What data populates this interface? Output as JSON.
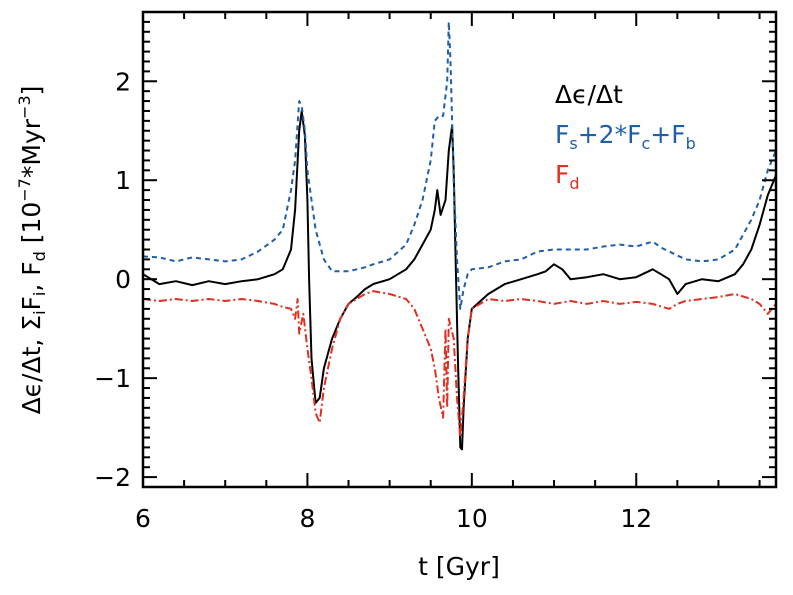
{
  "chart_data": {
    "type": "line",
    "xlabel": "t [Gyr]",
    "ylabel": "Δϵ/Δt,  Σ_i F_i,  F_d  [10^-7*Myr^-3]",
    "ylabel_parts": {
      "prefix": "Δϵ/Δt,  Σ",
      "sum_sub": "i",
      "mid": "F",
      "mid_sub": "i",
      "sep": ",  F",
      "fd_sub": "d",
      "unit_open": "  [10",
      "unit_exp": "−7",
      "unit_mid": "*Myr",
      "unit_exp2": "−3",
      "unit_close": "]"
    },
    "xlim": [
      6,
      13.7
    ],
    "ylim": [
      -2.1,
      2.7
    ],
    "x_ticks": [
      6,
      8,
      10,
      12
    ],
    "y_ticks": [
      -2,
      -1,
      0,
      1,
      2
    ],
    "legend": {
      "placement": "top-right",
      "entries": [
        {
          "name": "Δϵ/Δt",
          "color": "#000000",
          "parts": [
            {
              "t": "Δϵ/Δt",
              "sub": false
            }
          ]
        },
        {
          "name": "F_s+2*F_c+F_b",
          "color": "#1f5fa8",
          "parts": [
            {
              "t": "F",
              "sub": false
            },
            {
              "t": "s",
              "sub": true
            },
            {
              "t": "+2*F",
              "sub": false
            },
            {
              "t": "c",
              "sub": true
            },
            {
              "t": "+F",
              "sub": false
            },
            {
              "t": "b",
              "sub": true
            }
          ]
        },
        {
          "name": "F_d",
          "color": "#e03020",
          "parts": [
            {
              "t": "F",
              "sub": false
            },
            {
              "t": "d",
              "sub": true
            }
          ]
        }
      ]
    },
    "series": [
      {
        "name": "Δϵ/Δt",
        "color": "#000000",
        "dash": "solid",
        "points": [
          [
            6.0,
            0.05
          ],
          [
            6.2,
            -0.05
          ],
          [
            6.4,
            -0.02
          ],
          [
            6.6,
            -0.06
          ],
          [
            6.8,
            -0.02
          ],
          [
            7.0,
            -0.05
          ],
          [
            7.2,
            -0.02
          ],
          [
            7.4,
            0.0
          ],
          [
            7.6,
            0.05
          ],
          [
            7.7,
            0.1
          ],
          [
            7.8,
            0.3
          ],
          [
            7.85,
            0.7
          ],
          [
            7.9,
            1.5
          ],
          [
            7.93,
            1.7
          ],
          [
            7.97,
            1.45
          ],
          [
            8.0,
            0.8
          ],
          [
            8.02,
            0.0
          ],
          [
            8.05,
            -0.8
          ],
          [
            8.1,
            -1.25
          ],
          [
            8.15,
            -1.2
          ],
          [
            8.2,
            -0.9
          ],
          [
            8.3,
            -0.6
          ],
          [
            8.4,
            -0.4
          ],
          [
            8.5,
            -0.25
          ],
          [
            8.6,
            -0.18
          ],
          [
            8.7,
            -0.1
          ],
          [
            8.8,
            -0.05
          ],
          [
            9.0,
            0.0
          ],
          [
            9.2,
            0.1
          ],
          [
            9.3,
            0.2
          ],
          [
            9.4,
            0.35
          ],
          [
            9.5,
            0.5
          ],
          [
            9.55,
            0.7
          ],
          [
            9.58,
            0.9
          ],
          [
            9.62,
            0.65
          ],
          [
            9.68,
            0.8
          ],
          [
            9.72,
            1.3
          ],
          [
            9.76,
            1.55
          ],
          [
            9.78,
            1.1
          ],
          [
            9.8,
            0.3
          ],
          [
            9.83,
            -0.8
          ],
          [
            9.86,
            -1.7
          ],
          [
            9.88,
            -1.72
          ],
          [
            9.9,
            -1.3
          ],
          [
            9.95,
            -0.6
          ],
          [
            10.0,
            -0.3
          ],
          [
            10.2,
            -0.15
          ],
          [
            10.4,
            -0.05
          ],
          [
            10.6,
            0.0
          ],
          [
            10.8,
            0.05
          ],
          [
            10.9,
            0.08
          ],
          [
            11.0,
            0.15
          ],
          [
            11.1,
            0.1
          ],
          [
            11.2,
            0.0
          ],
          [
            11.4,
            0.02
          ],
          [
            11.6,
            0.05
          ],
          [
            11.8,
            0.0
          ],
          [
            12.0,
            0.02
          ],
          [
            12.2,
            0.1
          ],
          [
            12.3,
            0.05
          ],
          [
            12.4,
            0.0
          ],
          [
            12.5,
            -0.15
          ],
          [
            12.6,
            -0.05
          ],
          [
            12.8,
            0.0
          ],
          [
            13.0,
            -0.02
          ],
          [
            13.2,
            0.05
          ],
          [
            13.3,
            0.15
          ],
          [
            13.4,
            0.3
          ],
          [
            13.5,
            0.55
          ],
          [
            13.6,
            0.85
          ],
          [
            13.7,
            1.05
          ]
        ]
      },
      {
        "name": "F_s+2*F_c+F_b",
        "color": "#1f5fa8",
        "dash": "dashed",
        "points": [
          [
            6.0,
            0.23
          ],
          [
            6.2,
            0.22
          ],
          [
            6.4,
            0.18
          ],
          [
            6.6,
            0.22
          ],
          [
            6.8,
            0.2
          ],
          [
            7.0,
            0.18
          ],
          [
            7.2,
            0.2
          ],
          [
            7.4,
            0.28
          ],
          [
            7.6,
            0.4
          ],
          [
            7.7,
            0.5
          ],
          [
            7.8,
            0.9
          ],
          [
            7.85,
            1.2
          ],
          [
            7.9,
            1.8
          ],
          [
            7.93,
            1.75
          ],
          [
            7.97,
            1.5
          ],
          [
            8.0,
            1.1
          ],
          [
            8.05,
            0.8
          ],
          [
            8.1,
            0.5
          ],
          [
            8.2,
            0.2
          ],
          [
            8.3,
            0.08
          ],
          [
            8.5,
            0.08
          ],
          [
            8.7,
            0.12
          ],
          [
            8.8,
            0.15
          ],
          [
            9.0,
            0.2
          ],
          [
            9.2,
            0.35
          ],
          [
            9.3,
            0.55
          ],
          [
            9.4,
            0.8
          ],
          [
            9.5,
            1.2
          ],
          [
            9.55,
            1.6
          ],
          [
            9.6,
            1.65
          ],
          [
            9.65,
            1.65
          ],
          [
            9.7,
            2.0
          ],
          [
            9.72,
            2.6
          ],
          [
            9.74,
            2.2
          ],
          [
            9.78,
            1.0
          ],
          [
            9.82,
            0.2
          ],
          [
            9.86,
            -0.3
          ],
          [
            9.9,
            -0.1
          ],
          [
            9.95,
            0.05
          ],
          [
            10.0,
            0.1
          ],
          [
            10.2,
            0.12
          ],
          [
            10.4,
            0.18
          ],
          [
            10.6,
            0.2
          ],
          [
            10.8,
            0.28
          ],
          [
            11.0,
            0.3
          ],
          [
            11.2,
            0.3
          ],
          [
            11.4,
            0.3
          ],
          [
            11.6,
            0.33
          ],
          [
            11.8,
            0.35
          ],
          [
            12.0,
            0.33
          ],
          [
            12.2,
            0.38
          ],
          [
            12.3,
            0.32
          ],
          [
            12.4,
            0.28
          ],
          [
            12.6,
            0.2
          ],
          [
            12.8,
            0.18
          ],
          [
            13.0,
            0.2
          ],
          [
            13.2,
            0.3
          ],
          [
            13.3,
            0.45
          ],
          [
            13.4,
            0.6
          ],
          [
            13.5,
            0.8
          ],
          [
            13.6,
            1.1
          ],
          [
            13.7,
            1.3
          ]
        ]
      },
      {
        "name": "F_d",
        "color": "#e03020",
        "dash": "dashdot",
        "points": [
          [
            6.0,
            -0.2
          ],
          [
            6.2,
            -0.22
          ],
          [
            6.4,
            -0.2
          ],
          [
            6.6,
            -0.22
          ],
          [
            6.8,
            -0.2
          ],
          [
            7.0,
            -0.22
          ],
          [
            7.2,
            -0.2
          ],
          [
            7.4,
            -0.22
          ],
          [
            7.6,
            -0.25
          ],
          [
            7.7,
            -0.28
          ],
          [
            7.8,
            -0.3
          ],
          [
            7.85,
            -0.4
          ],
          [
            7.88,
            -0.2
          ],
          [
            7.9,
            -0.55
          ],
          [
            7.95,
            -0.35
          ],
          [
            8.0,
            -0.7
          ],
          [
            8.05,
            -1.0
          ],
          [
            8.1,
            -1.35
          ],
          [
            8.15,
            -1.45
          ],
          [
            8.2,
            -1.1
          ],
          [
            8.3,
            -0.7
          ],
          [
            8.4,
            -0.4
          ],
          [
            8.5,
            -0.25
          ],
          [
            8.6,
            -0.2
          ],
          [
            8.7,
            -0.15
          ],
          [
            8.8,
            -0.12
          ],
          [
            9.0,
            -0.15
          ],
          [
            9.2,
            -0.2
          ],
          [
            9.3,
            -0.3
          ],
          [
            9.4,
            -0.5
          ],
          [
            9.5,
            -0.7
          ],
          [
            9.55,
            -0.9
          ],
          [
            9.6,
            -1.2
          ],
          [
            9.65,
            -1.4
          ],
          [
            9.68,
            -0.5
          ],
          [
            9.7,
            -1.3
          ],
          [
            9.72,
            -0.4
          ],
          [
            9.78,
            -0.6
          ],
          [
            9.82,
            -1.2
          ],
          [
            9.86,
            -1.6
          ],
          [
            9.9,
            -1.2
          ],
          [
            9.95,
            -0.6
          ],
          [
            10.0,
            -0.3
          ],
          [
            10.2,
            -0.2
          ],
          [
            10.4,
            -0.22
          ],
          [
            10.6,
            -0.2
          ],
          [
            10.8,
            -0.22
          ],
          [
            11.0,
            -0.25
          ],
          [
            11.2,
            -0.22
          ],
          [
            11.4,
            -0.25
          ],
          [
            11.6,
            -0.22
          ],
          [
            11.8,
            -0.25
          ],
          [
            12.0,
            -0.23
          ],
          [
            12.2,
            -0.25
          ],
          [
            12.4,
            -0.3
          ],
          [
            12.5,
            -0.25
          ],
          [
            12.6,
            -0.22
          ],
          [
            12.8,
            -0.2
          ],
          [
            13.0,
            -0.18
          ],
          [
            13.2,
            -0.15
          ],
          [
            13.4,
            -0.2
          ],
          [
            13.5,
            -0.25
          ],
          [
            13.6,
            -0.35
          ],
          [
            13.7,
            -0.25
          ]
        ]
      }
    ]
  }
}
